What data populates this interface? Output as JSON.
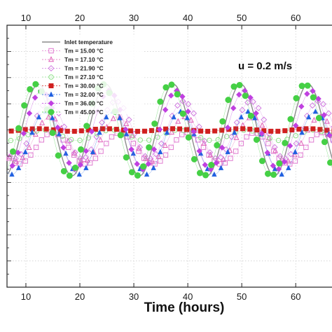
{
  "chart_data": {
    "type": "line",
    "xlabel": "Time (hours)",
    "ylabel": "",
    "xlim": [
      6.5,
      67.5
    ],
    "ylim": [
      0,
      20
    ],
    "x_ticks": [
      10,
      20,
      30,
      40,
      50,
      60
    ],
    "period_hours": 12.5,
    "annotation": "u = 0.2 m/s",
    "legend_position": "top-left",
    "series": [
      {
        "name": "Inlet temperature",
        "marker": "line",
        "color": "#8c8c8c",
        "amplitude": 3.5,
        "center": 12,
        "phase_lag": 0
      },
      {
        "name": "Tm = 15.00 °C",
        "marker": "square-open",
        "color": "#e07bd0",
        "amplitude": 1.2,
        "center": 10.6,
        "phase_lag": 2.6
      },
      {
        "name": "Tm = 17.10 °C",
        "marker": "triangle-open",
        "color": "#e060b8",
        "amplitude": 1.7,
        "center": 11.3,
        "phase_lag": 2.2
      },
      {
        "name": "Tm = 21.90 °C",
        "marker": "diamond-open",
        "color": "#d07ee0",
        "amplitude": 2.2,
        "center": 12.0,
        "phase_lag": 1.9
      },
      {
        "name": "Tm = 27.10 °C",
        "marker": "circle-open",
        "color": "#8fe08a",
        "amplitude": 0.4,
        "center": 11.6,
        "phase_lag": 1.0
      },
      {
        "name": "Tm = 30.00 °C",
        "marker": "square-filled",
        "color": "#d02020",
        "amplitude": 0.1,
        "center": 12.0,
        "phase_lag": 0
      },
      {
        "name": "Tm = 32.00 °C",
        "marker": "triangle-filled",
        "color": "#2060e0",
        "amplitude": 2.4,
        "center": 11.0,
        "phase_lag": 1.3
      },
      {
        "name": "Tm = 36.00 °C",
        "marker": "diamond-filled",
        "color": "#c040e0",
        "amplitude": 3.0,
        "center": 12.0,
        "phase_lag": 0.6
      },
      {
        "name": "Tm = 45.00 °C",
        "marker": "circle-filled",
        "color": "#45d045",
        "amplitude": 3.5,
        "center": 12.0,
        "phase_lag": -0.6
      }
    ]
  }
}
